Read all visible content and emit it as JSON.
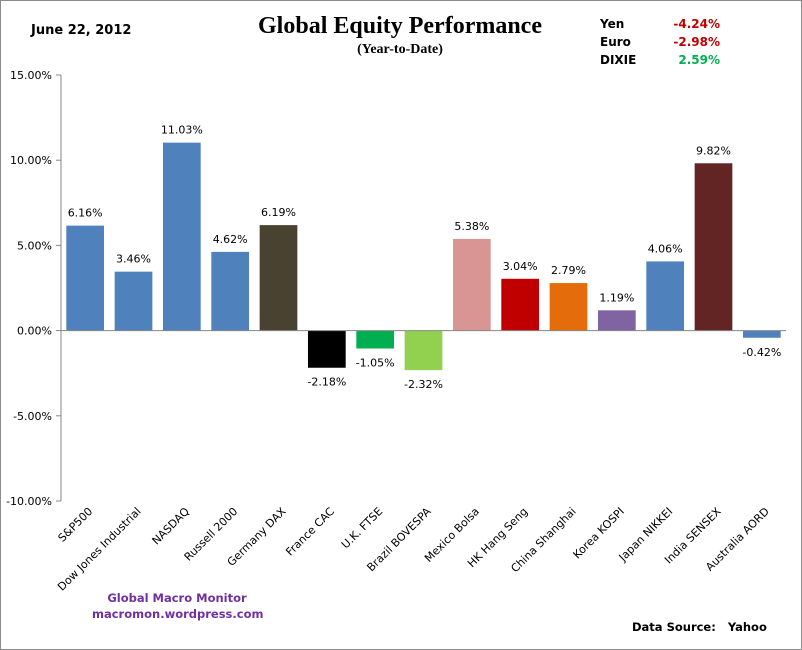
{
  "date": "June 22, 2012",
  "fx": [
    {
      "name": "Yen",
      "value": "-4.24%",
      "color": "#c00000"
    },
    {
      "name": "Euro",
      "value": "-2.98%",
      "color": "#c00000"
    },
    {
      "name": "DIXIE",
      "value": "2.59%",
      "color": "#00b050"
    }
  ],
  "footer": {
    "brand_line1": "Global Macro Monitor",
    "brand_line2": "macromon.wordpress.com",
    "source_label": "Data Source:",
    "source_value": "Yahoo"
  },
  "chart_data": {
    "type": "bar",
    "title": "Global Equity Performance",
    "subtitle": "(Year-to-Date)",
    "xlabel": "",
    "ylabel": "",
    "ylim": [
      -10,
      15
    ],
    "yticks": [
      15,
      10,
      5,
      0,
      -5,
      -10
    ],
    "ytick_labels": [
      "15.00%",
      "10.00%",
      "5.00%",
      "0.00%",
      "-5.00%",
      "-10.00%"
    ],
    "grid": false,
    "legend": "none",
    "categories": [
      "S&P500",
      "Dow Jones Industrial",
      "NASDAQ",
      "Russell 2000",
      "Germany DAX",
      "France CAC",
      "U.K. FTSE",
      "Brazil BOVESPA",
      "Mexico Bolsa",
      "HK  Hang Seng",
      "China Shanghai",
      "Korea KOSPI",
      "Japan NIKKEI",
      "India SENSEX",
      "Australia AORD"
    ],
    "values": [
      6.16,
      3.46,
      11.03,
      4.62,
      6.19,
      -2.18,
      -1.05,
      -2.32,
      5.38,
      3.04,
      2.79,
      1.19,
      4.06,
      9.82,
      -0.42
    ],
    "value_labels": [
      "6.16%",
      "3.46%",
      "11.03%",
      "4.62%",
      "6.19%",
      "-2.18%",
      "-1.05%",
      "-2.32%",
      "5.38%",
      "3.04%",
      "2.79%",
      "1.19%",
      "4.06%",
      "9.82%",
      "-0.42%"
    ],
    "colors": [
      "#4f81bd",
      "#4f81bd",
      "#4f81bd",
      "#4f81bd",
      "#4a4230",
      "#000000",
      "#00b050",
      "#92d050",
      "#d99594",
      "#c00000",
      "#e46c0a",
      "#8064a2",
      "#4f81bd",
      "#632523",
      "#4f81bd"
    ]
  }
}
